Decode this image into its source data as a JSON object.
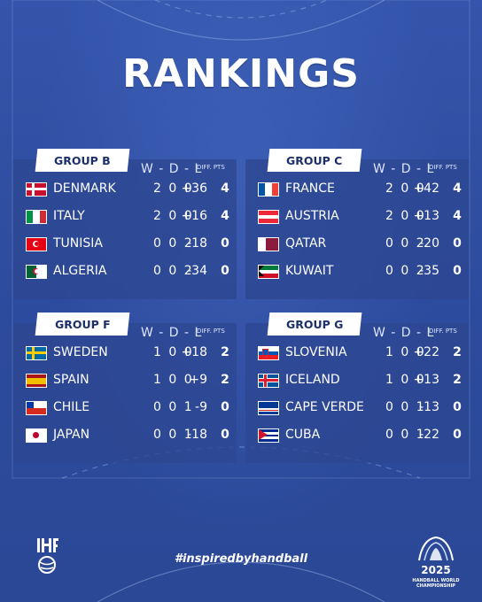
{
  "title": "RANKINGS",
  "headers": {
    "wdl": "W - D - L",
    "diff_pts": "DIFF. PTS"
  },
  "groups": [
    {
      "name": "GROUP B",
      "teams": [
        {
          "country": "DENMARK",
          "wdl": "2 0 0",
          "diff": "+36",
          "pts": "4",
          "flag": "denmark"
        },
        {
          "country": "ITALY",
          "wdl": "2 0 0",
          "diff": "+16",
          "pts": "4",
          "flag": "italy"
        },
        {
          "country": "TUNISIA",
          "wdl": "0 0 2",
          "diff": "-18",
          "pts": "0",
          "flag": "tunisia"
        },
        {
          "country": "ALGERIA",
          "wdl": "0 0 2",
          "diff": "-34",
          "pts": "0",
          "flag": "algeria"
        }
      ]
    },
    {
      "name": "GROUP C",
      "teams": [
        {
          "country": "FRANCE",
          "wdl": "2 0 0",
          "diff": "+42",
          "pts": "4",
          "flag": "france"
        },
        {
          "country": "AUSTRIA",
          "wdl": "2 0 0",
          "diff": "+13",
          "pts": "4",
          "flag": "austria"
        },
        {
          "country": "QATAR",
          "wdl": "0 0 2",
          "diff": "-20",
          "pts": "0",
          "flag": "qatar"
        },
        {
          "country": "KUWAIT",
          "wdl": "0 0 2",
          "diff": "-35",
          "pts": "0",
          "flag": "kuwait"
        }
      ]
    },
    {
      "name": "GROUP F",
      "teams": [
        {
          "country": "SWEDEN",
          "wdl": "1 0 0",
          "diff": "+18",
          "pts": "2",
          "flag": "sweden"
        },
        {
          "country": "SPAIN",
          "wdl": "1 0 0",
          "diff": "+9",
          "pts": "2",
          "flag": "spain"
        },
        {
          "country": "CHILE",
          "wdl": "0 0 1",
          "diff": "-9",
          "pts": "0",
          "flag": "chile"
        },
        {
          "country": "JAPAN",
          "wdl": "0 0 1",
          "diff": "-18",
          "pts": "0",
          "flag": "japan"
        }
      ]
    },
    {
      "name": "GROUP G",
      "teams": [
        {
          "country": "SLOVENIA",
          "wdl": "1 0 0",
          "diff": "+22",
          "pts": "2",
          "flag": "slovenia"
        },
        {
          "country": "ICELAND",
          "wdl": "1 0 0",
          "diff": "+13",
          "pts": "2",
          "flag": "iceland"
        },
        {
          "country": "CAPE VERDE",
          "wdl": "0 0 1",
          "diff": "-13",
          "pts": "0",
          "flag": "cape-verde"
        },
        {
          "country": "CUBA",
          "wdl": "0 0 1",
          "diff": "-22",
          "pts": "0",
          "flag": "cuba"
        }
      ]
    }
  ],
  "hashtag": "#inspiredbyhandball",
  "logos": {
    "left": "IHF",
    "right_year": "2025",
    "right_text": "HANDBALL WORLD CHAMPIONSHIP"
  }
}
